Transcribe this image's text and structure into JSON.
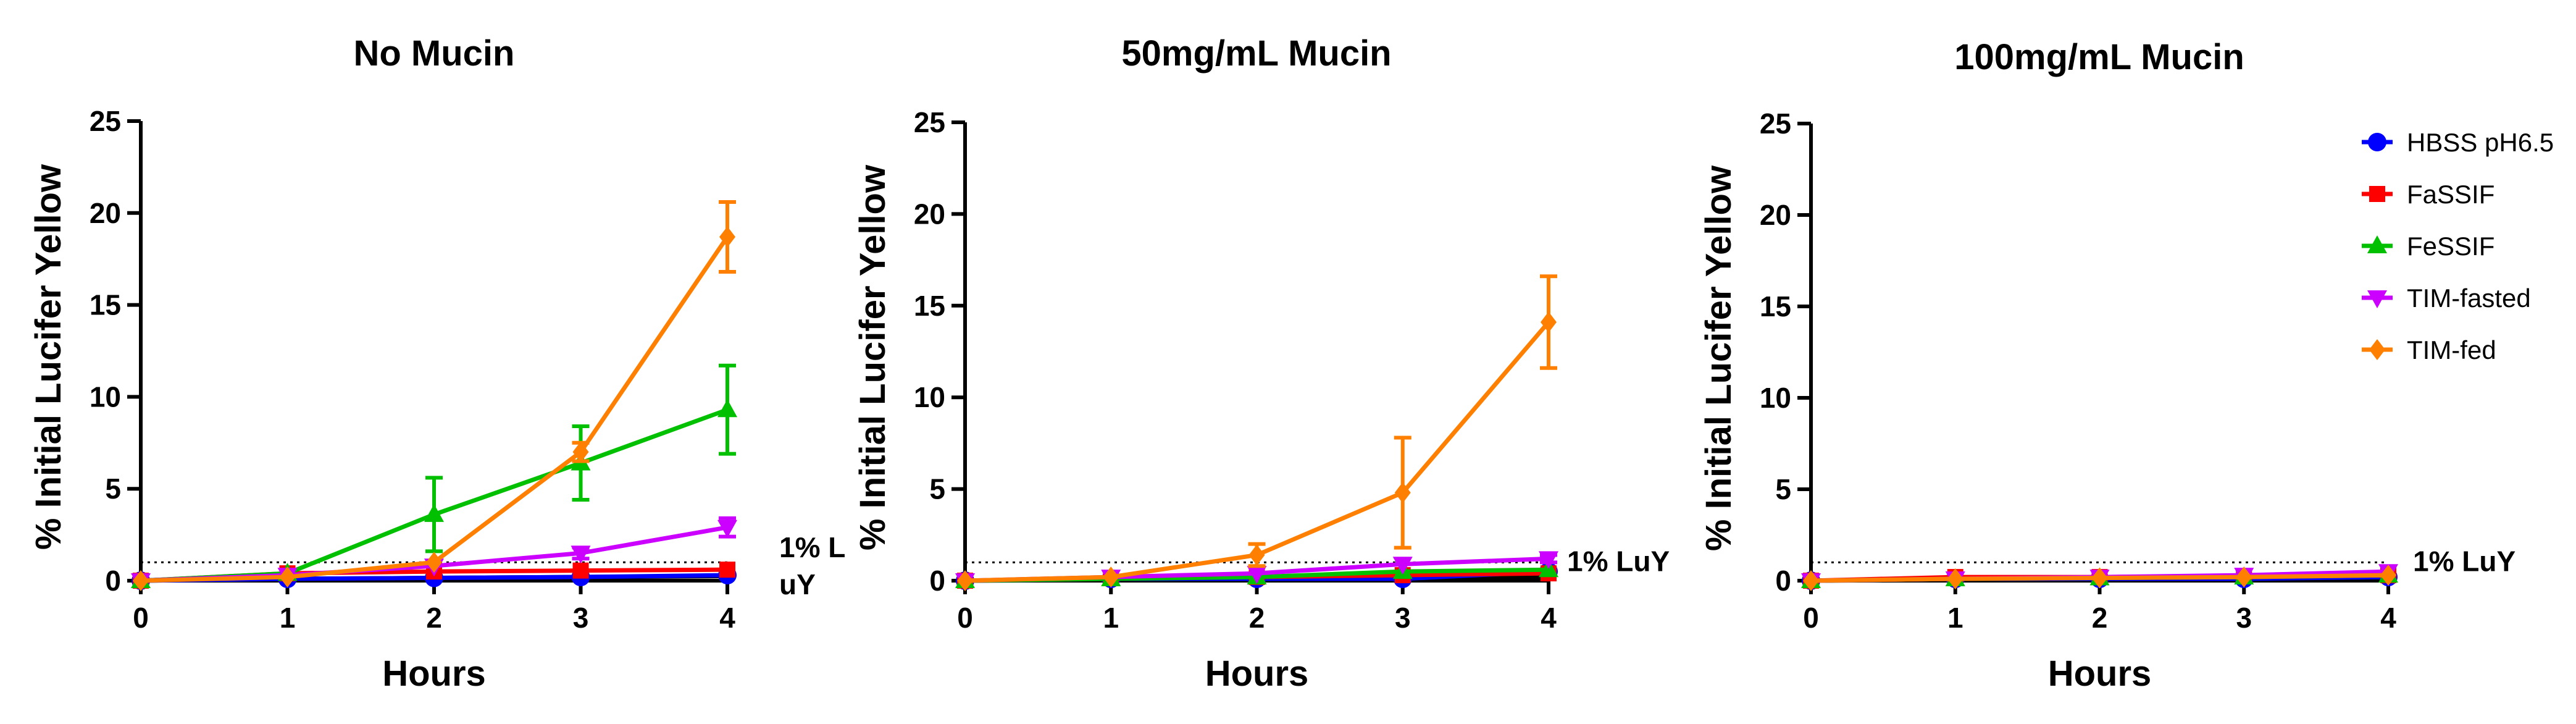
{
  "chart_data": {
    "type": "line",
    "legend": {
      "placement": "right",
      "series": [
        {
          "name": "HBSS pH6.5",
          "color": "#0000ff",
          "marker": "circle"
        },
        {
          "name": "FaSSIF",
          "color": "#ff0000",
          "marker": "square"
        },
        {
          "name": "FeSSIF",
          "color": "#00c000",
          "marker": "triangle-up"
        },
        {
          "name": "TIM-fasted",
          "color": "#cc00ff",
          "marker": "triangle-down"
        },
        {
          "name": "TIM-fed",
          "color": "#ff8000",
          "marker": "diamond"
        }
      ]
    },
    "panels": [
      {
        "title": "No Mucin",
        "xlabel": "Hours",
        "ylabel": "% Initial Lucifer Yellow",
        "xlim": [
          0,
          4
        ],
        "ylim": [
          0,
          25
        ],
        "x_ticks": [
          "0",
          "1",
          "2",
          "3",
          "4"
        ],
        "y_ticks": [
          "0",
          "5",
          "10",
          "15",
          "20",
          "25"
        ],
        "threshold": {
          "value": 1,
          "label_lines": [
            "1% L",
            "uY"
          ]
        },
        "x": [
          0,
          1,
          2,
          3,
          4
        ],
        "extra_line": {
          "color": "#000000",
          "values": [
            0,
            0.1,
            0.15,
            0.2,
            0.25
          ]
        },
        "series": [
          {
            "name": "HBSS pH6.5",
            "values": [
              0,
              0.1,
              0.15,
              0.2,
              0.3
            ],
            "errors": [
              0,
              0,
              0,
              0,
              0
            ]
          },
          {
            "name": "FaSSIF",
            "values": [
              0,
              0.4,
              0.5,
              0.55,
              0.6
            ],
            "errors": [
              0,
              0,
              0,
              0,
              0
            ]
          },
          {
            "name": "FeSSIF",
            "values": [
              0,
              0.4,
              3.6,
              6.4,
              9.3
            ],
            "errors": [
              0,
              0,
              2.0,
              2.0,
              2.4
            ]
          },
          {
            "name": "TIM-fasted",
            "values": [
              0,
              0.3,
              0.8,
              1.5,
              2.9
            ],
            "errors": [
              0,
              0,
              0,
              0.3,
              0.5
            ]
          },
          {
            "name": "TIM-fed",
            "values": [
              0,
              0.2,
              1.0,
              7.0,
              18.7
            ],
            "errors": [
              0,
              0,
              0,
              0.5,
              1.9
            ]
          }
        ]
      },
      {
        "title": "50mg/mL Mucin",
        "xlabel": "Hours",
        "ylabel": "% Initial Lucifer Yellow",
        "xlim": [
          0,
          4
        ],
        "ylim": [
          0,
          25
        ],
        "x_ticks": [
          "0",
          "1",
          "2",
          "3",
          "4"
        ],
        "y_ticks": [
          "0",
          "5",
          "10",
          "15",
          "20",
          "25"
        ],
        "threshold": {
          "value": 1,
          "label_lines": [
            "1% LuY"
          ]
        },
        "x": [
          0,
          1,
          2,
          3,
          4
        ],
        "extra_line": {
          "color": "#000000",
          "values": [
            0,
            0.05,
            0.05,
            0.1,
            0.2
          ]
        },
        "series": [
          {
            "name": "HBSS pH6.5",
            "values": [
              0,
              0.1,
              0.1,
              0.1,
              0.5
            ],
            "errors": [
              0,
              0,
              0,
              0,
              0
            ]
          },
          {
            "name": "FaSSIF",
            "values": [
              0,
              0.15,
              0.2,
              0.3,
              0.4
            ],
            "errors": [
              0,
              0,
              0,
              0,
              0
            ]
          },
          {
            "name": "FeSSIF",
            "values": [
              0,
              0.1,
              0.2,
              0.5,
              0.6
            ],
            "errors": [
              0,
              0,
              0,
              0,
              0
            ]
          },
          {
            "name": "TIM-fasted",
            "values": [
              0,
              0.2,
              0.4,
              0.9,
              1.2
            ],
            "errors": [
              0,
              0,
              0,
              0,
              0.2
            ]
          },
          {
            "name": "TIM-fed",
            "values": [
              0,
              0.2,
              1.4,
              4.8,
              14.1
            ],
            "errors": [
              0,
              0,
              0.6,
              3.0,
              2.5
            ]
          }
        ]
      },
      {
        "title": "100mg/mL Mucin",
        "xlabel": "Hours",
        "ylabel": "% Initial Lucifer Yellow",
        "xlim": [
          0,
          4
        ],
        "ylim": [
          0,
          25
        ],
        "x_ticks": [
          "0",
          "1",
          "2",
          "3",
          "4"
        ],
        "y_ticks": [
          "0",
          "5",
          "10",
          "15",
          "20",
          "25"
        ],
        "threshold": {
          "value": 1,
          "label_lines": [
            "1% LuY"
          ]
        },
        "x": [
          0,
          1,
          2,
          3,
          4
        ],
        "extra_line": {
          "color": "#000000",
          "values": [
            0,
            0.05,
            0.05,
            0.05,
            0.1
          ]
        },
        "series": [
          {
            "name": "HBSS pH6.5",
            "values": [
              0,
              0.1,
              0.1,
              0.1,
              0.2
            ],
            "errors": [
              0,
              0,
              0,
              0,
              0
            ]
          },
          {
            "name": "FaSSIF",
            "values": [
              0,
              0.2,
              0.2,
              0.25,
              0.3
            ],
            "errors": [
              0,
              0,
              0,
              0,
              0
            ]
          },
          {
            "name": "FeSSIF",
            "values": [
              0,
              0.1,
              0.15,
              0.2,
              0.3
            ],
            "errors": [
              0,
              0,
              0,
              0,
              0
            ]
          },
          {
            "name": "TIM-fasted",
            "values": [
              0,
              0.1,
              0.2,
              0.3,
              0.5
            ],
            "errors": [
              0,
              0,
              0,
              0,
              0
            ]
          },
          {
            "name": "TIM-fed",
            "values": [
              0,
              0.1,
              0.15,
              0.2,
              0.3
            ],
            "errors": [
              0,
              0,
              0,
              0,
              0
            ]
          }
        ]
      }
    ]
  }
}
